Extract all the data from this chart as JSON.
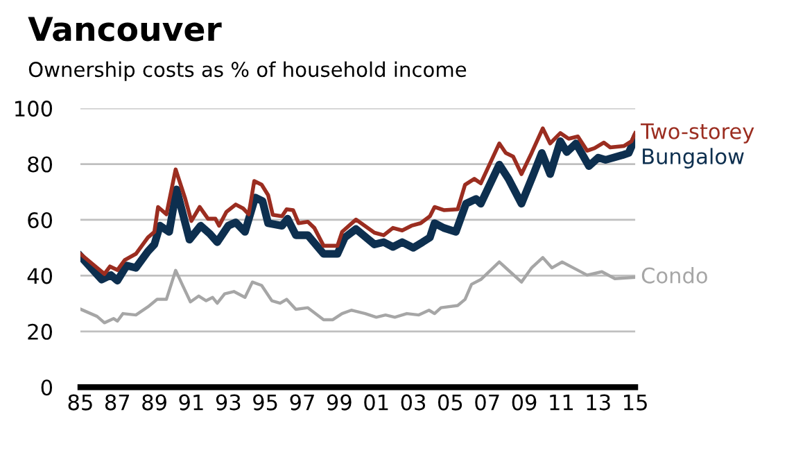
{
  "chart_data": {
    "type": "line",
    "title": "Vancouver",
    "subtitle": "Ownership costs as % of household income",
    "xlim": [
      1985,
      2015
    ],
    "ylim": [
      0,
      100
    ],
    "xticks": [
      {
        "value": 1985,
        "label": "85"
      },
      {
        "value": 1987,
        "label": "87"
      },
      {
        "value": 1989,
        "label": "89"
      },
      {
        "value": 1991,
        "label": "91"
      },
      {
        "value": 1993,
        "label": "93"
      },
      {
        "value": 1995,
        "label": "95"
      },
      {
        "value": 1997,
        "label": "97"
      },
      {
        "value": 1999,
        "label": "99"
      },
      {
        "value": 2001,
        "label": "01"
      },
      {
        "value": 2003,
        "label": "03"
      },
      {
        "value": 2005,
        "label": "05"
      },
      {
        "value": 2007,
        "label": "07"
      },
      {
        "value": 2009,
        "label": "09"
      },
      {
        "value": 2011,
        "label": "11"
      },
      {
        "value": 2013,
        "label": "13"
      },
      {
        "value": 2015,
        "label": "15"
      }
    ],
    "yticks": [
      0,
      20,
      40,
      60,
      80,
      100
    ],
    "grid": "y",
    "series": [
      {
        "name": "Two-storey",
        "color": "#9b2d20",
        "x": [
          1985,
          1985.9,
          1986.3,
          1986.6,
          1987,
          1987.4,
          1988,
          1988.65,
          1989,
          1989.2,
          1989.65,
          1990.15,
          1990.65,
          1991,
          1991.45,
          1991.9,
          1992.3,
          1992.5,
          1992.9,
          1993.4,
          1993.8,
          1994.1,
          1994.4,
          1994.8,
          1995.15,
          1995.4,
          1995.9,
          1996.15,
          1996.5,
          1996.8,
          1997.3,
          1997.65,
          1998.15,
          1998.9,
          1999.15,
          1999.9,
          2000.9,
          2001.4,
          2001.9,
          2002.4,
          2002.9,
          2003.4,
          2003.9,
          2004.15,
          2004.65,
          2005.4,
          2005.8,
          2006.3,
          2006.65,
          2007.65,
          2008,
          2008.4,
          2008.85,
          2009.4,
          2010,
          2010.4,
          2010.95,
          2011.4,
          2011.9,
          2012.4,
          2012.8,
          2013.3,
          2013.65,
          2014.4,
          2014.8,
          2015
        ],
        "values": [
          47.8,
          42.8,
          40.6,
          43.3,
          42,
          45.6,
          47.8,
          53.7,
          55.7,
          64.6,
          62,
          78.1,
          68,
          59.6,
          64.6,
          60.4,
          60.4,
          57.9,
          62.9,
          65.5,
          64.1,
          62,
          73.9,
          72.6,
          68.9,
          61.8,
          61.3,
          63.8,
          63.5,
          58.8,
          59.3,
          57.1,
          50.7,
          50.7,
          55.7,
          60.1,
          55.4,
          54.5,
          57.1,
          56.2,
          57.9,
          58.8,
          61.3,
          64.6,
          63.5,
          63.8,
          72.6,
          74.7,
          73.1,
          87.4,
          84,
          82.7,
          76.4,
          84,
          92.8,
          87.4,
          91.1,
          89.1,
          89.9,
          84.8,
          85.7,
          87.7,
          86,
          86.5,
          88.2,
          91.1
        ]
      },
      {
        "name": "Bungalow",
        "color": "#0d2f4f",
        "x": [
          1985,
          1986.15,
          1986.65,
          1987,
          1987.5,
          1988,
          1988.65,
          1989,
          1989.3,
          1989.8,
          1990.2,
          1990.9,
          1991.5,
          1992,
          1992.4,
          1993,
          1993.4,
          1993.9,
          1994.45,
          1994.85,
          1995.15,
          1995.9,
          1996.2,
          1996.65,
          1997.3,
          1998.15,
          1998.9,
          1999.3,
          1999.9,
          2000.9,
          2001.4,
          2001.9,
          2002.4,
          2003,
          2003.5,
          2003.9,
          2004.15,
          2004.65,
          2005.3,
          2005.85,
          2006.4,
          2006.65,
          2007.65,
          2008.15,
          2008.85,
          2009.5,
          2009.95,
          2010.4,
          2010.95,
          2011.3,
          2011.8,
          2012.5,
          2013,
          2013.4,
          2014.3,
          2014.65,
          2015
        ],
        "values": [
          47,
          38.6,
          40.2,
          38.2,
          43.6,
          42.8,
          48.7,
          51.2,
          57.9,
          55.7,
          70.9,
          52.9,
          57.9,
          55,
          52,
          57.9,
          59.1,
          55.7,
          68,
          66.7,
          58.8,
          57.9,
          60.4,
          54.5,
          54.5,
          47.8,
          47.8,
          53.7,
          56.7,
          51.2,
          52,
          50.3,
          52,
          50,
          52,
          53.7,
          58.8,
          57.1,
          55.7,
          65.8,
          67.5,
          65.8,
          79.8,
          74.7,
          65.8,
          76.4,
          84,
          76.4,
          88.2,
          84.3,
          87.4,
          79.3,
          82.3,
          81.5,
          83.2,
          84,
          89.4
        ]
      },
      {
        "name": "Condo",
        "color": "#a6a6a6",
        "x": [
          1985,
          1985.9,
          1986.3,
          1986.8,
          1987,
          1987.3,
          1988,
          1988.65,
          1989.15,
          1989.65,
          1990.15,
          1990.5,
          1990.95,
          1991.4,
          1991.8,
          1992.15,
          1992.4,
          1992.8,
          1993.3,
          1993.9,
          1994.3,
          1994.8,
          1995.35,
          1995.8,
          1996.15,
          1996.65,
          1997.3,
          1998.15,
          1998.65,
          1999.15,
          1999.65,
          2000.4,
          2001,
          2001.5,
          2002,
          2002.65,
          2003.3,
          2003.85,
          2004.15,
          2004.5,
          2005.4,
          2005.8,
          2006.15,
          2006.65,
          2007.65,
          2008.15,
          2008.85,
          2009.4,
          2010,
          2010.5,
          2011.05,
          2011.65,
          2012.4,
          2013.2,
          2013.9,
          2015
        ],
        "values": [
          28,
          25.4,
          23.1,
          24.6,
          23.7,
          26.4,
          25.9,
          28.8,
          31.5,
          31.5,
          41.9,
          36.9,
          30.6,
          32.7,
          31,
          32.2,
          30.1,
          33.5,
          34.3,
          32.2,
          37.7,
          36.5,
          31,
          30.1,
          31.5,
          27.9,
          28.5,
          24.2,
          24.2,
          26.4,
          27.6,
          26.4,
          25.1,
          25.9,
          25.1,
          26.4,
          25.9,
          27.6,
          26.4,
          28.5,
          29.3,
          31.5,
          36.9,
          38.6,
          44.9,
          41.9,
          37.7,
          42.8,
          46.5,
          42.8,
          44.9,
          42.8,
          40.2,
          41.4,
          38.9,
          39.4
        ]
      }
    ]
  }
}
